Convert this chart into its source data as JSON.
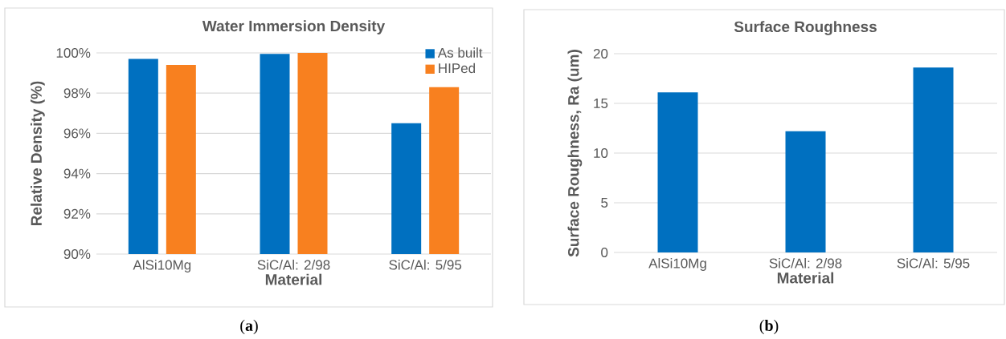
{
  "chart_data": [
    {
      "type": "bar",
      "title": "Water Immersion Density",
      "xlabel": "Material",
      "ylabel": "Relative Density (%)",
      "categories": [
        "AlSi10Mg",
        "SiC/Al: 2/98",
        "SiC/Al: 5/95"
      ],
      "series": [
        {
          "name": "As built",
          "color": "#0070c0",
          "values": [
            99.7,
            99.95,
            96.5
          ]
        },
        {
          "name": "HIPed",
          "color": "#f8801f",
          "values": [
            99.4,
            100.0,
            98.3
          ]
        }
      ],
      "ylim": [
        90,
        100
      ],
      "yticks": [
        {
          "value": 90,
          "label": "90%"
        },
        {
          "value": 92,
          "label": "92%"
        },
        {
          "value": 94,
          "label": "94%"
        },
        {
          "value": 96,
          "label": "96%"
        },
        {
          "value": 98,
          "label": "98%"
        },
        {
          "value": 100,
          "label": "100%"
        }
      ],
      "grid": "y",
      "legend": "top right",
      "annotations": [
        "(**a**)"
      ]
    },
    {
      "type": "bar",
      "title": "Surface Roughness",
      "xlabel": "Material",
      "ylabel": "Surface Roughness, Ra (um)",
      "categories": [
        "AlSi10Mg",
        "SiC/Al: 2/98",
        "SiC/Al: 5/95"
      ],
      "series": [
        {
          "color": "#0070c0",
          "values": [
            16.1,
            12.2,
            18.6
          ]
        }
      ],
      "ylim": [
        0,
        20
      ],
      "yticks": [
        0,
        5,
        10,
        15,
        20
      ],
      "grid": "y",
      "annotations": [
        "(**b**)"
      ]
    }
  ]
}
